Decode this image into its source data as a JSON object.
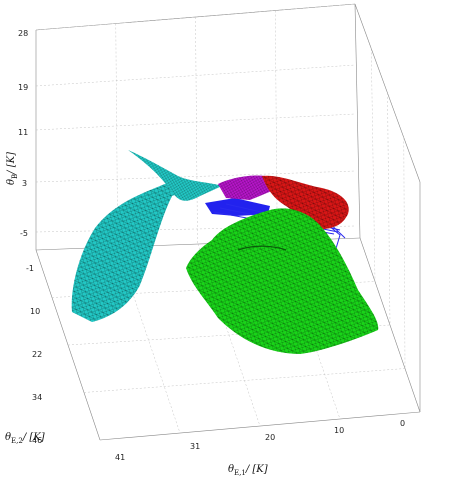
{
  "chart_data": {
    "type": "3d-surface",
    "axes": {
      "z": {
        "label": "θ",
        "sub": "B",
        "unit": "/ [K]",
        "ticks": [
          "28",
          "19",
          "11",
          "3",
          "-5"
        ]
      },
      "y": {
        "label": "θ",
        "sub": "E,2",
        "unit": "/ [K]",
        "ticks": [
          "-1",
          "10",
          "22",
          "34",
          "46"
        ]
      },
      "x": {
        "label": "θ",
        "sub": "E,1",
        "unit": "/ [K]",
        "ticks": [
          "41",
          "31",
          "20",
          "10",
          "0"
        ]
      }
    },
    "grid": true,
    "surfaces": [
      {
        "color": "#22c7c4"
      },
      {
        "color": "#19d419"
      },
      {
        "color": "#d81616"
      },
      {
        "color": "#b615c9"
      },
      {
        "color": "#2222ee"
      }
    ]
  }
}
